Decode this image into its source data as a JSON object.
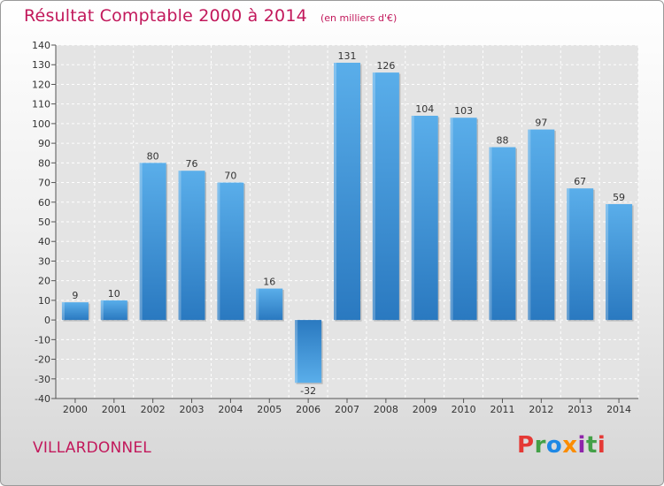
{
  "chart_data": {
    "type": "bar",
    "title": "Résultat Comptable 2000 à 2014",
    "unit": "(en milliers d'€)",
    "categories": [
      "2000",
      "2001",
      "2002",
      "2003",
      "2004",
      "2005",
      "2006",
      "2007",
      "2008",
      "2009",
      "2010",
      "2011",
      "2012",
      "2013",
      "2014"
    ],
    "values": [
      9,
      10,
      80,
      76,
      70,
      16,
      -32,
      131,
      126,
      104,
      103,
      88,
      97,
      67,
      59
    ],
    "ylim": [
      -40,
      140
    ],
    "yticks": [
      -40,
      -30,
      -20,
      -10,
      0,
      10,
      20,
      30,
      40,
      50,
      60,
      70,
      80,
      90,
      100,
      110,
      120,
      130,
      140
    ],
    "grid": true,
    "bar_color": "#3a8fd6"
  },
  "commune": "VILLARDONNEL",
  "logo": {
    "letters": [
      "P",
      "r",
      "o",
      "x",
      "i",
      "t",
      "i"
    ],
    "colors": [
      "#e53935",
      "#43a047",
      "#1e88e5",
      "#fb8c00",
      "#8e24aa",
      "#43a047",
      "#e53935"
    ]
  }
}
